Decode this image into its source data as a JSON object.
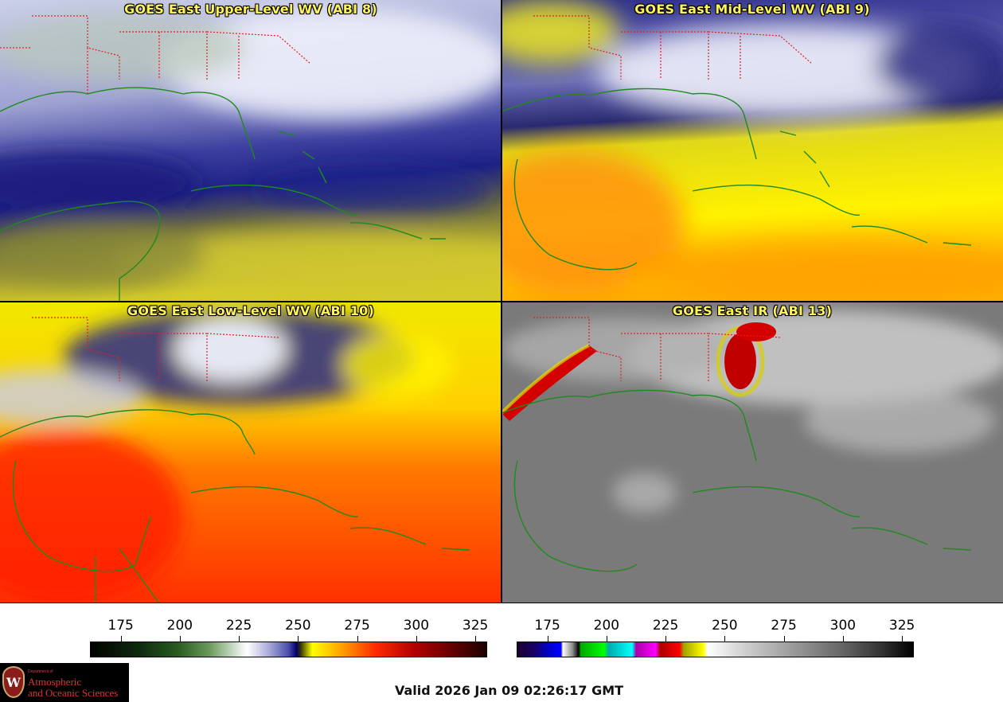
{
  "panels": [
    {
      "id": "p1",
      "title": "GOES East Upper-Level WV (ABI 8)",
      "scheme": "upper"
    },
    {
      "id": "p2",
      "title": "GOES East Mid-Level WV (ABI 9)",
      "scheme": "mid"
    },
    {
      "id": "p3",
      "title": "GOES East Low-Level WV (ABI 10)",
      "scheme": "low"
    },
    {
      "id": "p4",
      "title": "GOES East IR (ABI 13)",
      "scheme": "ir"
    }
  ],
  "colorbars": {
    "water_vapor": {
      "ticks": [
        "175",
        "200",
        "225",
        "250",
        "275",
        "300",
        "325"
      ],
      "range": [
        162,
        330
      ]
    },
    "infrared": {
      "ticks": [
        "175",
        "200",
        "225",
        "250",
        "275",
        "300",
        "325"
      ],
      "range": [
        162,
        330
      ]
    }
  },
  "logo": {
    "letter": "W",
    "dept": "Department of",
    "line1": "Atmospheric",
    "line2": "and Oceanic Sciences"
  },
  "valid_time": "Valid 2026 Jan 09 02:26:17 GMT",
  "colors": {
    "title_text": "#fff35a",
    "coastline": "#1e8a1e",
    "state_borders": "#e02020"
  }
}
